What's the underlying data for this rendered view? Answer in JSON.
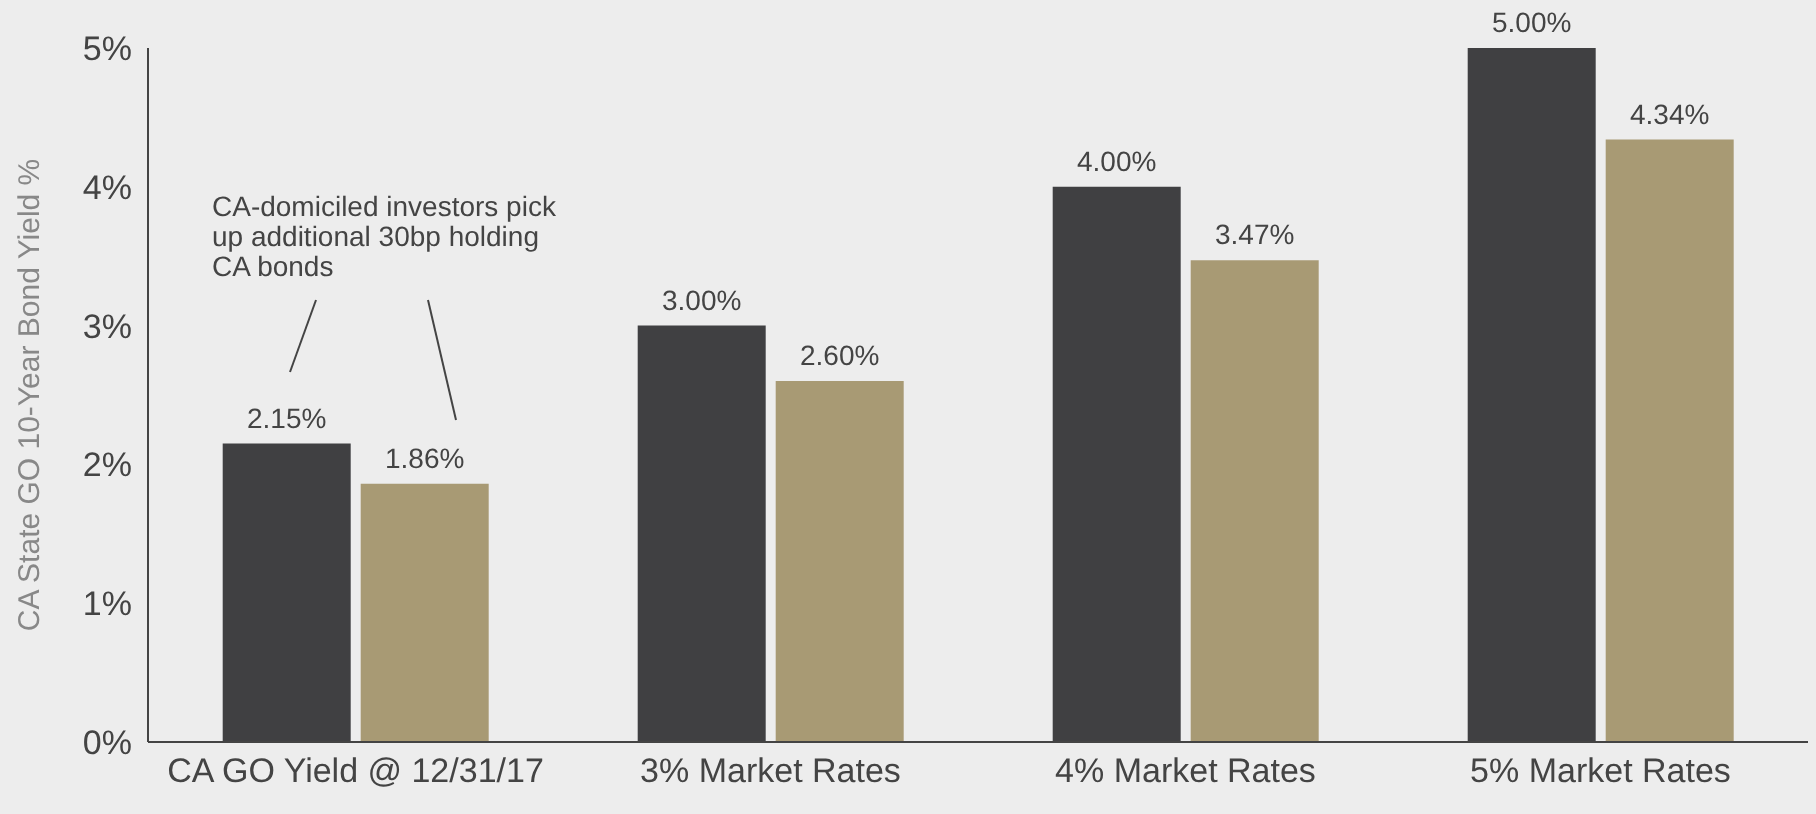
{
  "chart_data": {
    "type": "bar",
    "ylabel": "CA State GO 10-Year Bond Yield %",
    "categories": [
      "CA GO Yield @ 12/31/17",
      "3% Market Rates",
      "4% Market Rates",
      "5% Market Rates"
    ],
    "series": [
      {
        "color": "#404042",
        "values": [
          2.15,
          3.0,
          4.0,
          5.0
        ],
        "value_labels": [
          "2.15%",
          "3.00%",
          "4.00%",
          "5.00%"
        ]
      },
      {
        "color": "#a89a74",
        "values": [
          1.86,
          2.6,
          3.47,
          4.34
        ],
        "value_labels": [
          "1.86%",
          "2.60%",
          "3.47%",
          "4.34%"
        ]
      }
    ],
    "ylim": [
      0,
      5
    ],
    "yticks": [
      {
        "value": 0,
        "label": "0%"
      },
      {
        "value": 1,
        "label": "1%"
      },
      {
        "value": 2,
        "label": "2%"
      },
      {
        "value": 3,
        "label": "3%"
      },
      {
        "value": 4,
        "label": "4%"
      },
      {
        "value": 5,
        "label": "5%"
      }
    ],
    "grid": false,
    "legend": false,
    "annotations": [
      "CA-domiciled investors pick up additional 30bp holding CA bonds"
    ]
  }
}
